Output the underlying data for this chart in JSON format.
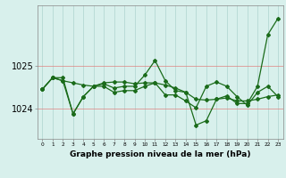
{
  "xlabel": "Graphe pression niveau de la mer (hPa)",
  "hours": [
    0,
    1,
    2,
    3,
    4,
    5,
    6,
    7,
    8,
    9,
    10,
    11,
    12,
    13,
    14,
    15,
    16,
    17,
    18,
    19,
    20,
    21,
    22,
    23
  ],
  "series1": [
    1024.45,
    1024.72,
    1024.72,
    1023.88,
    1024.28,
    1024.52,
    1024.58,
    1024.48,
    1024.52,
    1024.52,
    1024.78,
    1025.12,
    1024.65,
    1024.42,
    1024.38,
    1023.62,
    1023.72,
    1024.22,
    1024.3,
    1024.12,
    1024.12,
    1024.52,
    1025.72,
    1026.1
  ],
  "series2": [
    1024.45,
    1024.72,
    1024.65,
    1024.6,
    1024.55,
    1024.52,
    1024.6,
    1024.62,
    1024.62,
    1024.58,
    1024.6,
    1024.6,
    1024.55,
    1024.48,
    1024.38,
    1024.22,
    1024.2,
    1024.22,
    1024.25,
    1024.18,
    1024.18,
    1024.22,
    1024.28,
    1024.32
  ],
  "series3": [
    1024.45,
    1024.72,
    1024.65,
    1023.88,
    1024.28,
    1024.52,
    1024.52,
    1024.38,
    1024.42,
    1024.42,
    1024.52,
    1024.6,
    1024.32,
    1024.32,
    1024.18,
    1024.02,
    1024.52,
    1024.62,
    1024.52,
    1024.28,
    1024.08,
    1024.38,
    1024.52,
    1024.28
  ],
  "line_color": "#1a6b1a",
  "bg_color": "#d8f0ec",
  "grid_color": "#aed4ce",
  "yticks": [
    1024,
    1025
  ],
  "ylim": [
    1023.3,
    1026.4
  ],
  "xlim": [
    -0.5,
    23.5
  ]
}
